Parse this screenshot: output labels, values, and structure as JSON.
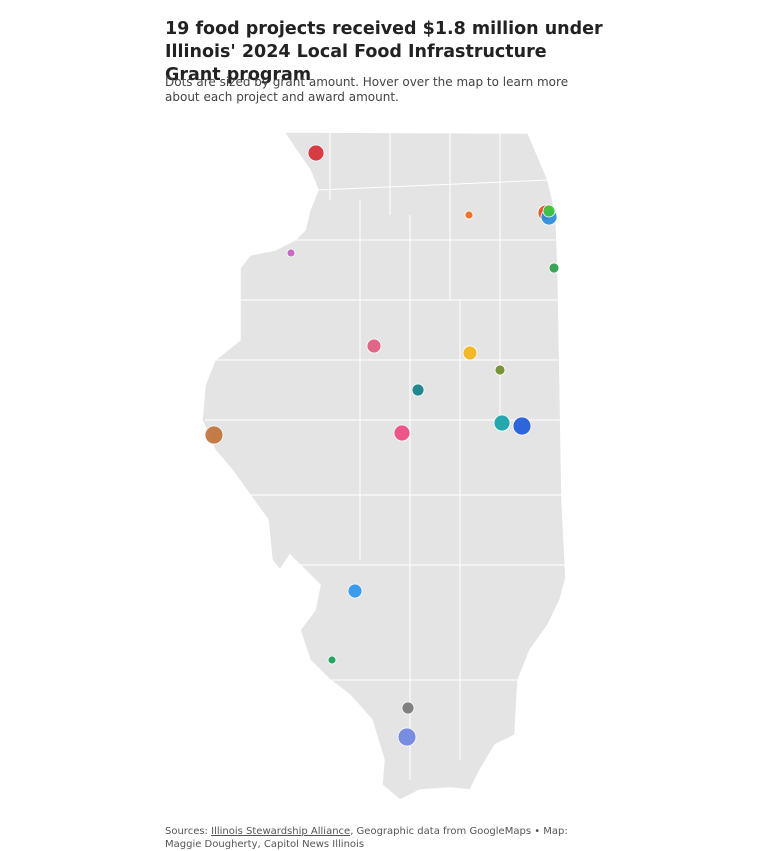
{
  "header": {
    "title": "19 food projects received $1.8 million under Illinois' 2024 Local Food Infrastructure Grant program",
    "subtitle": "Dots are sized by grant amount. Hover over the map to learn more about each project and award amount."
  },
  "source": {
    "label": "Sources:",
    "link": "Illinois Stewardship Alliance",
    "rest": ", Geographic data from GoogleMaps • Map: Maggie Dougherty, Capitol News Illinois"
  }
}
